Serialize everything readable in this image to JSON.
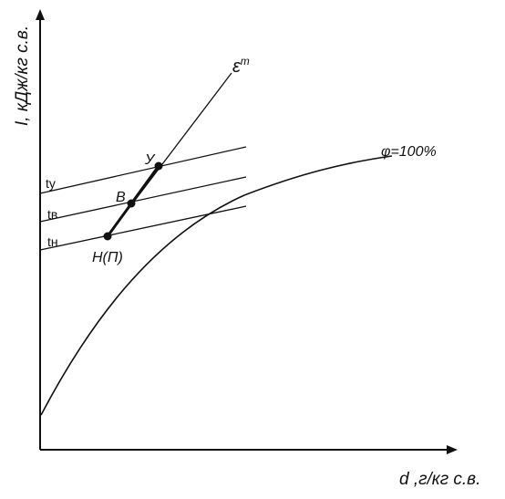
{
  "axes": {
    "y_label": "I, кДж/кг с.в.",
    "x_label": "d ,г/кг с.в."
  },
  "curves": {
    "epsilon_label": "ε",
    "epsilon_sup": "т",
    "saturation_label": "φ=100%"
  },
  "isotherms": {
    "t_y": "tу",
    "t_v": "tв",
    "t_n": "tн"
  },
  "points": {
    "y": "У",
    "b": "В",
    "h": "Н(П)"
  }
}
